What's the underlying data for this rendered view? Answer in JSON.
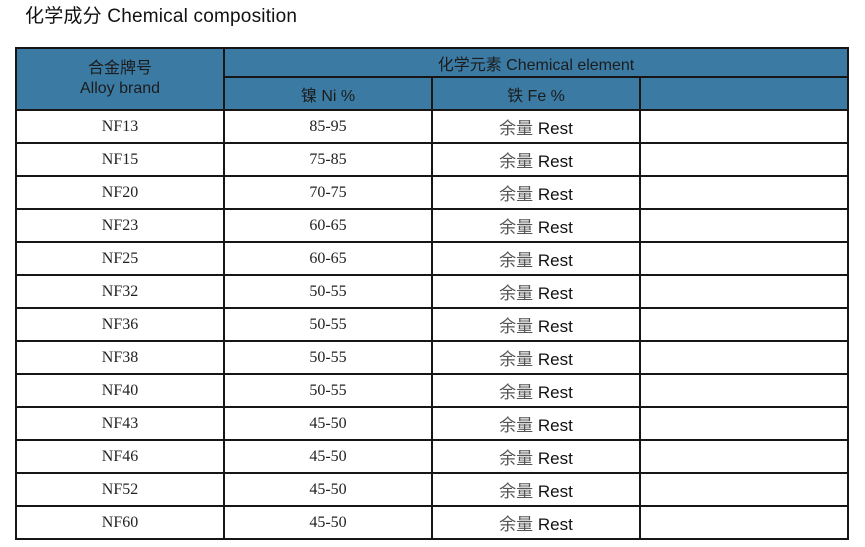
{
  "page": {
    "title": "化学成分 Chemical composition"
  },
  "colors": {
    "header_bg": "#3b7aa3",
    "border": "#161616",
    "page_bg": "#ffffff"
  },
  "table": {
    "header": {
      "alloy_brand_zh": "合金牌号",
      "alloy_brand_en": "Alloy brand",
      "chemical_element": "化学元素 Chemical element",
      "ni_label": "镍 Ni %",
      "fe_label": "铁 Fe %",
      "extra_label": ""
    },
    "rows": [
      {
        "brand": "NF13",
        "ni": "85-95",
        "fe_zh": "余量",
        "fe_en": "Rest"
      },
      {
        "brand": "NF15",
        "ni": "75-85",
        "fe_zh": "余量",
        "fe_en": "Rest"
      },
      {
        "brand": "NF20",
        "ni": "70-75",
        "fe_zh": "余量",
        "fe_en": "Rest"
      },
      {
        "brand": "NF23",
        "ni": "60-65",
        "fe_zh": "余量",
        "fe_en": "Rest"
      },
      {
        "brand": "NF25",
        "ni": "60-65",
        "fe_zh": "余量",
        "fe_en": "Rest"
      },
      {
        "brand": "NF32",
        "ni": "50-55",
        "fe_zh": "余量",
        "fe_en": "Rest"
      },
      {
        "brand": "NF36",
        "ni": "50-55",
        "fe_zh": "余量",
        "fe_en": "Rest"
      },
      {
        "brand": "NF38",
        "ni": "50-55",
        "fe_zh": "余量",
        "fe_en": "Rest"
      },
      {
        "brand": "NF40",
        "ni": "50-55",
        "fe_zh": "余量",
        "fe_en": "Rest"
      },
      {
        "brand": "NF43",
        "ni": "45-50",
        "fe_zh": "余量",
        "fe_en": "Rest"
      },
      {
        "brand": "NF46",
        "ni": "45-50",
        "fe_zh": "余量",
        "fe_en": "Rest"
      },
      {
        "brand": "NF52",
        "ni": "45-50",
        "fe_zh": "余量",
        "fe_en": "Rest"
      },
      {
        "brand": "NF60",
        "ni": "45-50",
        "fe_zh": "余量",
        "fe_en": "Rest"
      }
    ]
  }
}
